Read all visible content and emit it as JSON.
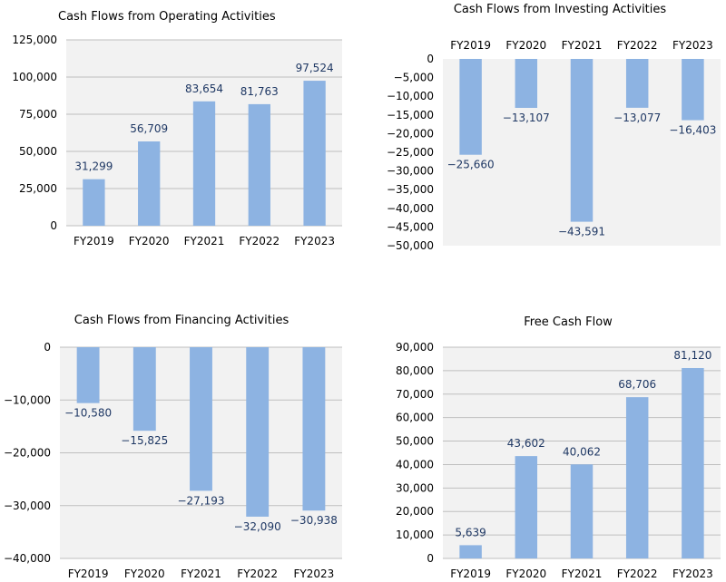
{
  "colors": {
    "bar": "#8db3e2",
    "plot_bg": "#f2f2f2",
    "grid": "#bfbfbf",
    "label": "#1f3864"
  },
  "chart_data": [
    {
      "type": "bar",
      "title": "Cash Flows from Operating Activities",
      "categories": [
        "FY2019",
        "FY2020",
        "FY2021",
        "FY2022",
        "FY2023"
      ],
      "values": [
        31299,
        56709,
        83654,
        81763,
        97524
      ],
      "value_labels": [
        "31,299",
        "56,709",
        "83,654",
        "81,763",
        "97,524"
      ],
      "ylim": [
        0,
        125000
      ],
      "yticks": [
        0,
        25000,
        50000,
        75000,
        100000,
        125000
      ],
      "ytick_labels": [
        "0",
        "25,000",
        "50,000",
        "75,000",
        "100,000",
        "125,000"
      ],
      "category_axis": "bottom",
      "grid": true
    },
    {
      "type": "bar",
      "title": "Cash Flows from Investing Activities",
      "categories": [
        "FY2019",
        "FY2020",
        "FY2021",
        "FY2022",
        "FY2023"
      ],
      "values": [
        -25660,
        -13107,
        -43591,
        -13077,
        -16403
      ],
      "value_labels": [
        "−25,660",
        "−13,107",
        "−43,591",
        "−13,077",
        "−16,403"
      ],
      "ylim": [
        -50000,
        0
      ],
      "yticks": [
        0,
        -5000,
        -10000,
        -15000,
        -20000,
        -25000,
        -30000,
        -35000,
        -40000,
        -45000,
        -50000
      ],
      "ytick_labels": [
        "0",
        "−5,000",
        "−10,000",
        "−15,000",
        "−20,000",
        "−25,000",
        "−30,000",
        "−35,000",
        "−40,000",
        "−45,000",
        "−50,000"
      ],
      "category_axis": "top",
      "grid": false
    },
    {
      "type": "bar",
      "title": "Cash Flows from Financing Activities",
      "categories": [
        "FY2019",
        "FY2020",
        "FY2021",
        "FY2022",
        "FY2023"
      ],
      "values": [
        -10580,
        -15825,
        -27193,
        -32090,
        -30938
      ],
      "value_labels": [
        "−10,580",
        "−15,825",
        "−27,193",
        "−32,090",
        "−30,938"
      ],
      "ylim": [
        -40000,
        0
      ],
      "yticks": [
        0,
        -10000,
        -20000,
        -30000,
        -40000
      ],
      "ytick_labels": [
        "0",
        "−10,000",
        "−20,000",
        "−30,000",
        "−40,000"
      ],
      "category_axis": "bottom",
      "grid": true
    },
    {
      "type": "bar",
      "title": "Free Cash Flow",
      "categories": [
        "FY2019",
        "FY2020",
        "FY2021",
        "FY2022",
        "FY2023"
      ],
      "values": [
        5639,
        43602,
        40062,
        68706,
        81120
      ],
      "value_labels": [
        "5,639",
        "43,602",
        "40,062",
        "68,706",
        "81,120"
      ],
      "ylim": [
        0,
        90000
      ],
      "yticks": [
        0,
        10000,
        20000,
        30000,
        40000,
        50000,
        60000,
        70000,
        80000,
        90000
      ],
      "ytick_labels": [
        "0",
        "10,000",
        "20,000",
        "30,000",
        "40,000",
        "50,000",
        "60,000",
        "70,000",
        "80,000",
        "90,000"
      ],
      "category_axis": "bottom",
      "grid": true
    }
  ]
}
